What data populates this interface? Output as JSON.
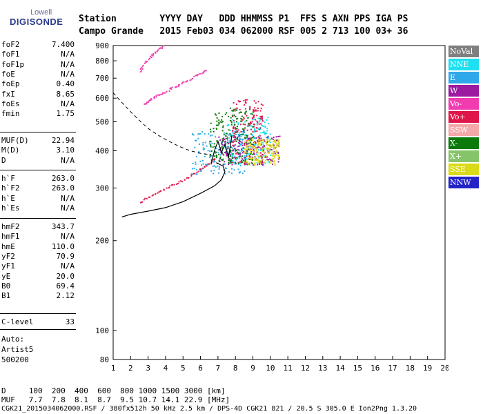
{
  "logo": {
    "top": "Lowell",
    "main": "DIGISONDE"
  },
  "header": {
    "line1": "Station        YYYY DAY   DDD HHMMSS P1  FFS S AXN PPS IGA PS",
    "line2": "Campo Grande   2015 Feb03 034 062000 RSF 005 2 713 100 03+ 36"
  },
  "params_group1": [
    {
      "name": "foF2",
      "value": "7.400"
    },
    {
      "name": "foF1",
      "value": "N/A"
    },
    {
      "name": "foF1p",
      "value": "N/A"
    },
    {
      "name": "foE",
      "value": "N/A"
    },
    {
      "name": "foEp",
      "value": "0.40"
    },
    {
      "name": "fxI",
      "value": "8.65"
    },
    {
      "name": "foEs",
      "value": "N/A"
    },
    {
      "name": "fmin",
      "value": "1.75"
    }
  ],
  "params_group2": [
    {
      "name": "MUF(D)",
      "value": "22.94"
    },
    {
      "name": "M(D)",
      "value": "3.10"
    },
    {
      "name": "D",
      "value": "N/A"
    }
  ],
  "params_group3": [
    {
      "name": "h`F",
      "value": "263.0"
    },
    {
      "name": "h`F2",
      "value": "263.0"
    },
    {
      "name": "h`E",
      "value": "N/A"
    },
    {
      "name": "h`Es",
      "value": "N/A"
    }
  ],
  "params_group4": [
    {
      "name": "hmF2",
      "value": "343.7"
    },
    {
      "name": "hmF1",
      "value": "N/A"
    },
    {
      "name": "hmE",
      "value": "110.0"
    },
    {
      "name": "yF2",
      "value": "70.9"
    },
    {
      "name": "yF1",
      "value": "N/A"
    },
    {
      "name": "yE",
      "value": "20.0"
    },
    {
      "name": "B0",
      "value": "69.4"
    },
    {
      "name": "B1",
      "value": "2.12"
    }
  ],
  "params_group5": [
    {
      "name": "C-level",
      "value": "33"
    }
  ],
  "auto": {
    "l1": "Auto:",
    "l2": "Artist5",
    "l3": "500200"
  },
  "legend": [
    {
      "label": "NoVal",
      "color": "#7f7f7f"
    },
    {
      "label": "NNE",
      "color": "#1ee0f0"
    },
    {
      "label": "E",
      "color": "#2fa8ea"
    },
    {
      "label": "W",
      "color": "#9c1aa0"
    },
    {
      "label": "Vo-",
      "color": "#f03cb0"
    },
    {
      "label": "Vo+",
      "color": "#e0154a"
    },
    {
      "label": "SSW",
      "color": "#f5a8a8"
    },
    {
      "label": "X-",
      "color": "#0b7a0b"
    },
    {
      "label": "X+",
      "color": "#86c46a"
    },
    {
      "label": "SSE",
      "color": "#dada16"
    },
    {
      "label": "NNW",
      "color": "#2323c8"
    }
  ],
  "bottom": {
    "d_line": "D     100  200  400  600  800 1000 1500 3000 [km]",
    "muf_line": "MUF   7.7  7.8  8.1  8.7  9.5 10.7 14.1 22.9 [MHz]",
    "footer": "CGK21_2015034062000.RSF / 380fx512h 50 kHz 2.5 km / DPS-4D CGK21 821 / 20.5 S 305.0 E Ion2Png 1.3.20"
  },
  "chart_data": {
    "type": "scatter",
    "title": "",
    "xlabel": "",
    "ylabel": "",
    "xlim": [
      1,
      20
    ],
    "ylim": [
      80,
      900
    ],
    "y_scale": "log",
    "x_ticks": [
      1,
      2,
      3,
      4,
      5,
      6,
      7,
      8,
      9,
      10,
      11,
      12,
      13,
      14,
      15,
      16,
      17,
      18,
      19,
      20
    ],
    "y_ticks": [
      80,
      100,
      200,
      300,
      400,
      500,
      600,
      700,
      800,
      900
    ],
    "traces": [
      {
        "name": "o-trace",
        "color": "#e0154a",
        "x": [
          2.5,
          3.0,
          3.5,
          4.0,
          4.5,
          5.0,
          5.5,
          6.0,
          6.5,
          6.9
        ],
        "y": [
          268,
          280,
          291,
          300,
          310,
          321,
          333,
          348,
          365,
          382
        ]
      },
      {
        "name": "x-trace",
        "color": "#f03cb0",
        "x": [
          2.8,
          3.0,
          3.3,
          3.6,
          4.0,
          4.4,
          4.8,
          5.2,
          5.6,
          6.0,
          6.3
        ],
        "y": [
          575,
          590,
          605,
          620,
          635,
          655,
          670,
          690,
          710,
          730,
          750
        ]
      },
      {
        "name": "upper-trace",
        "color": "#f03cb0",
        "x": [
          2.5,
          2.7,
          3.0,
          3.3,
          3.6,
          3.9
        ],
        "y": [
          740,
          780,
          820,
          850,
          880,
          900
        ]
      }
    ],
    "clusters": [
      {
        "color": "#2fa8ea",
        "x": [
          5.5,
          8.5
        ],
        "y": [
          335,
          470
        ]
      },
      {
        "color": "#1ee0f0",
        "x": [
          7.5,
          10.0
        ],
        "y": [
          360,
          520
        ]
      },
      {
        "color": "#e0154a",
        "x": [
          7.8,
          9.6
        ],
        "y": [
          360,
          600
        ]
      },
      {
        "color": "#9c1aa0",
        "x": [
          7.0,
          10.5
        ],
        "y": [
          360,
          450
        ]
      },
      {
        "color": "#dada16",
        "x": [
          8.5,
          10.5
        ],
        "y": [
          360,
          440
        ]
      },
      {
        "color": "#0b7a0b",
        "x": [
          6.5,
          9.0
        ],
        "y": [
          360,
          560
        ]
      }
    ],
    "profile": {
      "color": "#000",
      "x": [
        1.5,
        2.0,
        3.0,
        4.0,
        5.0,
        6.0,
        6.8,
        7.2,
        7.4,
        7.3,
        6.9
      ],
      "y": [
        240,
        245,
        251,
        258,
        270,
        288,
        305,
        320,
        340,
        355,
        365
      ]
    },
    "virtual_height": {
      "color": "#000",
      "x": [
        6.6,
        6.8,
        7.0,
        7.2,
        7.4,
        7.6,
        7.8
      ],
      "y": [
        360,
        400,
        430,
        395,
        420,
        380,
        450
      ]
    },
    "model_dashed": {
      "color": "#000",
      "x": [
        1.0,
        1.5,
        2.0,
        2.5,
        3.0,
        3.6,
        4.2,
        4.8,
        5.4,
        6.0,
        6.6
      ],
      "y": [
        625,
        580,
        540,
        505,
        475,
        450,
        430,
        413,
        400,
        392,
        388
      ]
    }
  }
}
